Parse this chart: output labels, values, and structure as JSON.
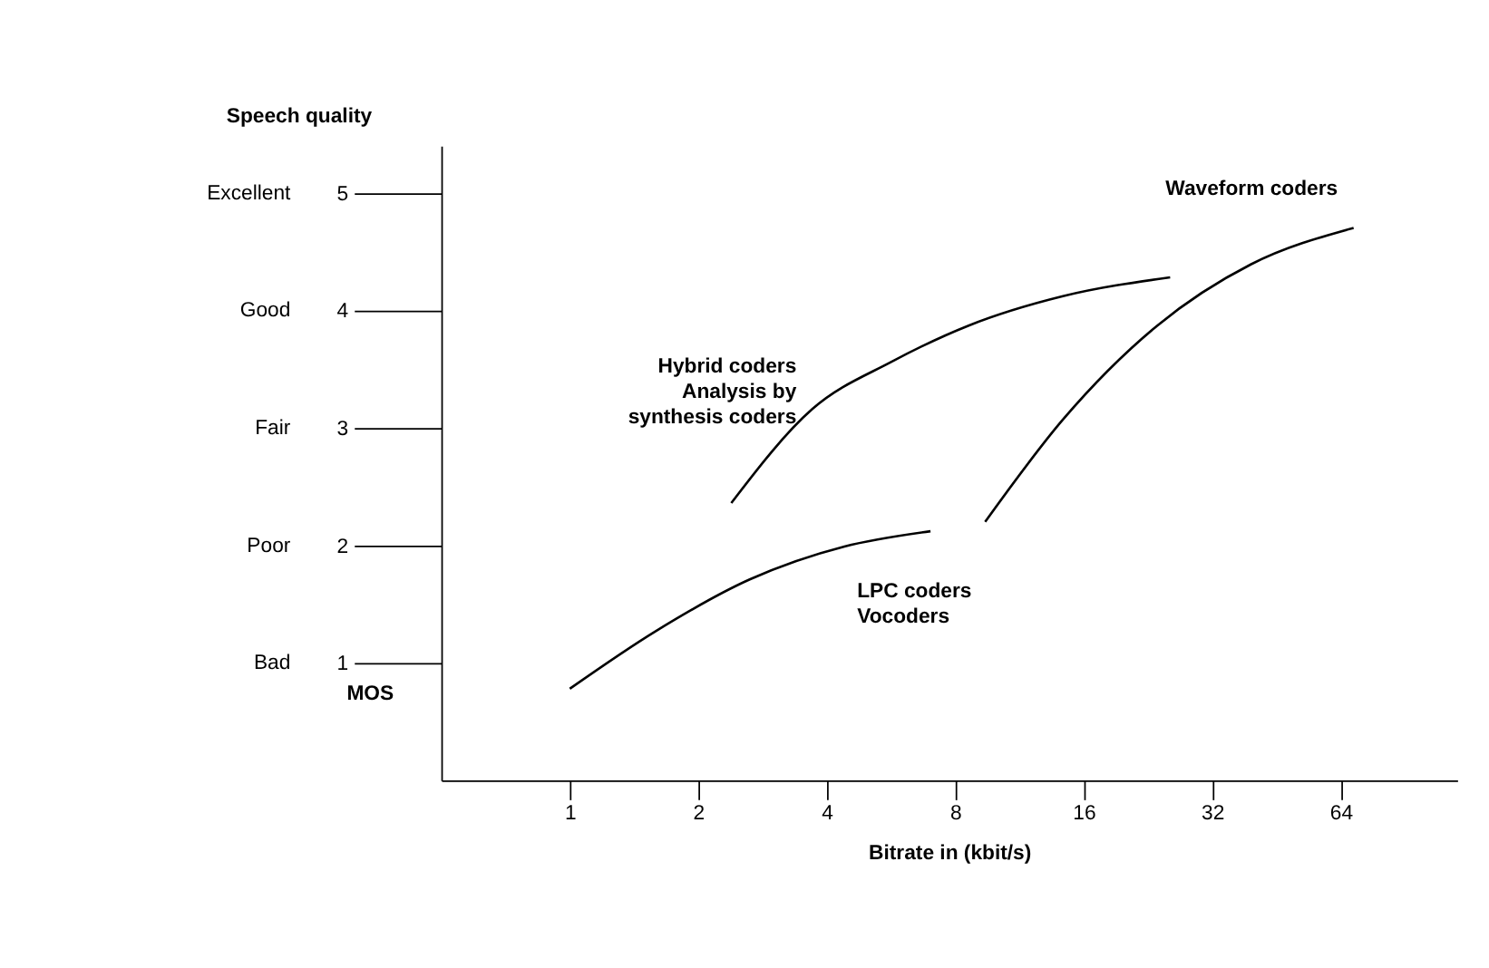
{
  "chart_data": {
    "type": "line",
    "xlabel": "Bitrate in (kbit/s)",
    "ylabel": "Speech quality",
    "annotations": [
      "Bad",
      "Poor",
      "Fair",
      "Good",
      "Excellent",
      "MOS"
    ],
    "log": "x",
    "xlim": [
      0.5,
      120
    ],
    "xticks": [
      1,
      2,
      4,
      8,
      16,
      32,
      64
    ],
    "ylim": [
      0,
      5.4
    ],
    "yticks": [
      1,
      2,
      3,
      4,
      5
    ],
    "grid": false,
    "marker": "none",
    "line_style": "solid",
    "series": [
      {
        "name": "LPC coders\nVocoders",
        "color": "#000000",
        "x": [
          1,
          1.59,
          2.64,
          4.4,
          7.0
        ],
        "values": [
          0.78,
          1.27,
          1.71,
          1.99,
          2.12
        ]
      },
      {
        "name": "Hybrid coders\nAnalysis by\nsynthesis coders",
        "color": "#000000",
        "x": [
          2.39,
          3.7,
          5.66,
          8.6,
          14.3,
          25.5
        ],
        "values": [
          2.36,
          3.16,
          3.56,
          3.87,
          4.12,
          4.28
        ]
      },
      {
        "name": "Waveform coders",
        "color": "#000000",
        "x": [
          9.4,
          14.3,
          23.8,
          39.4,
          68.6
        ],
        "values": [
          2.2,
          3.07,
          3.87,
          4.39,
          4.7
        ]
      }
    ]
  }
}
